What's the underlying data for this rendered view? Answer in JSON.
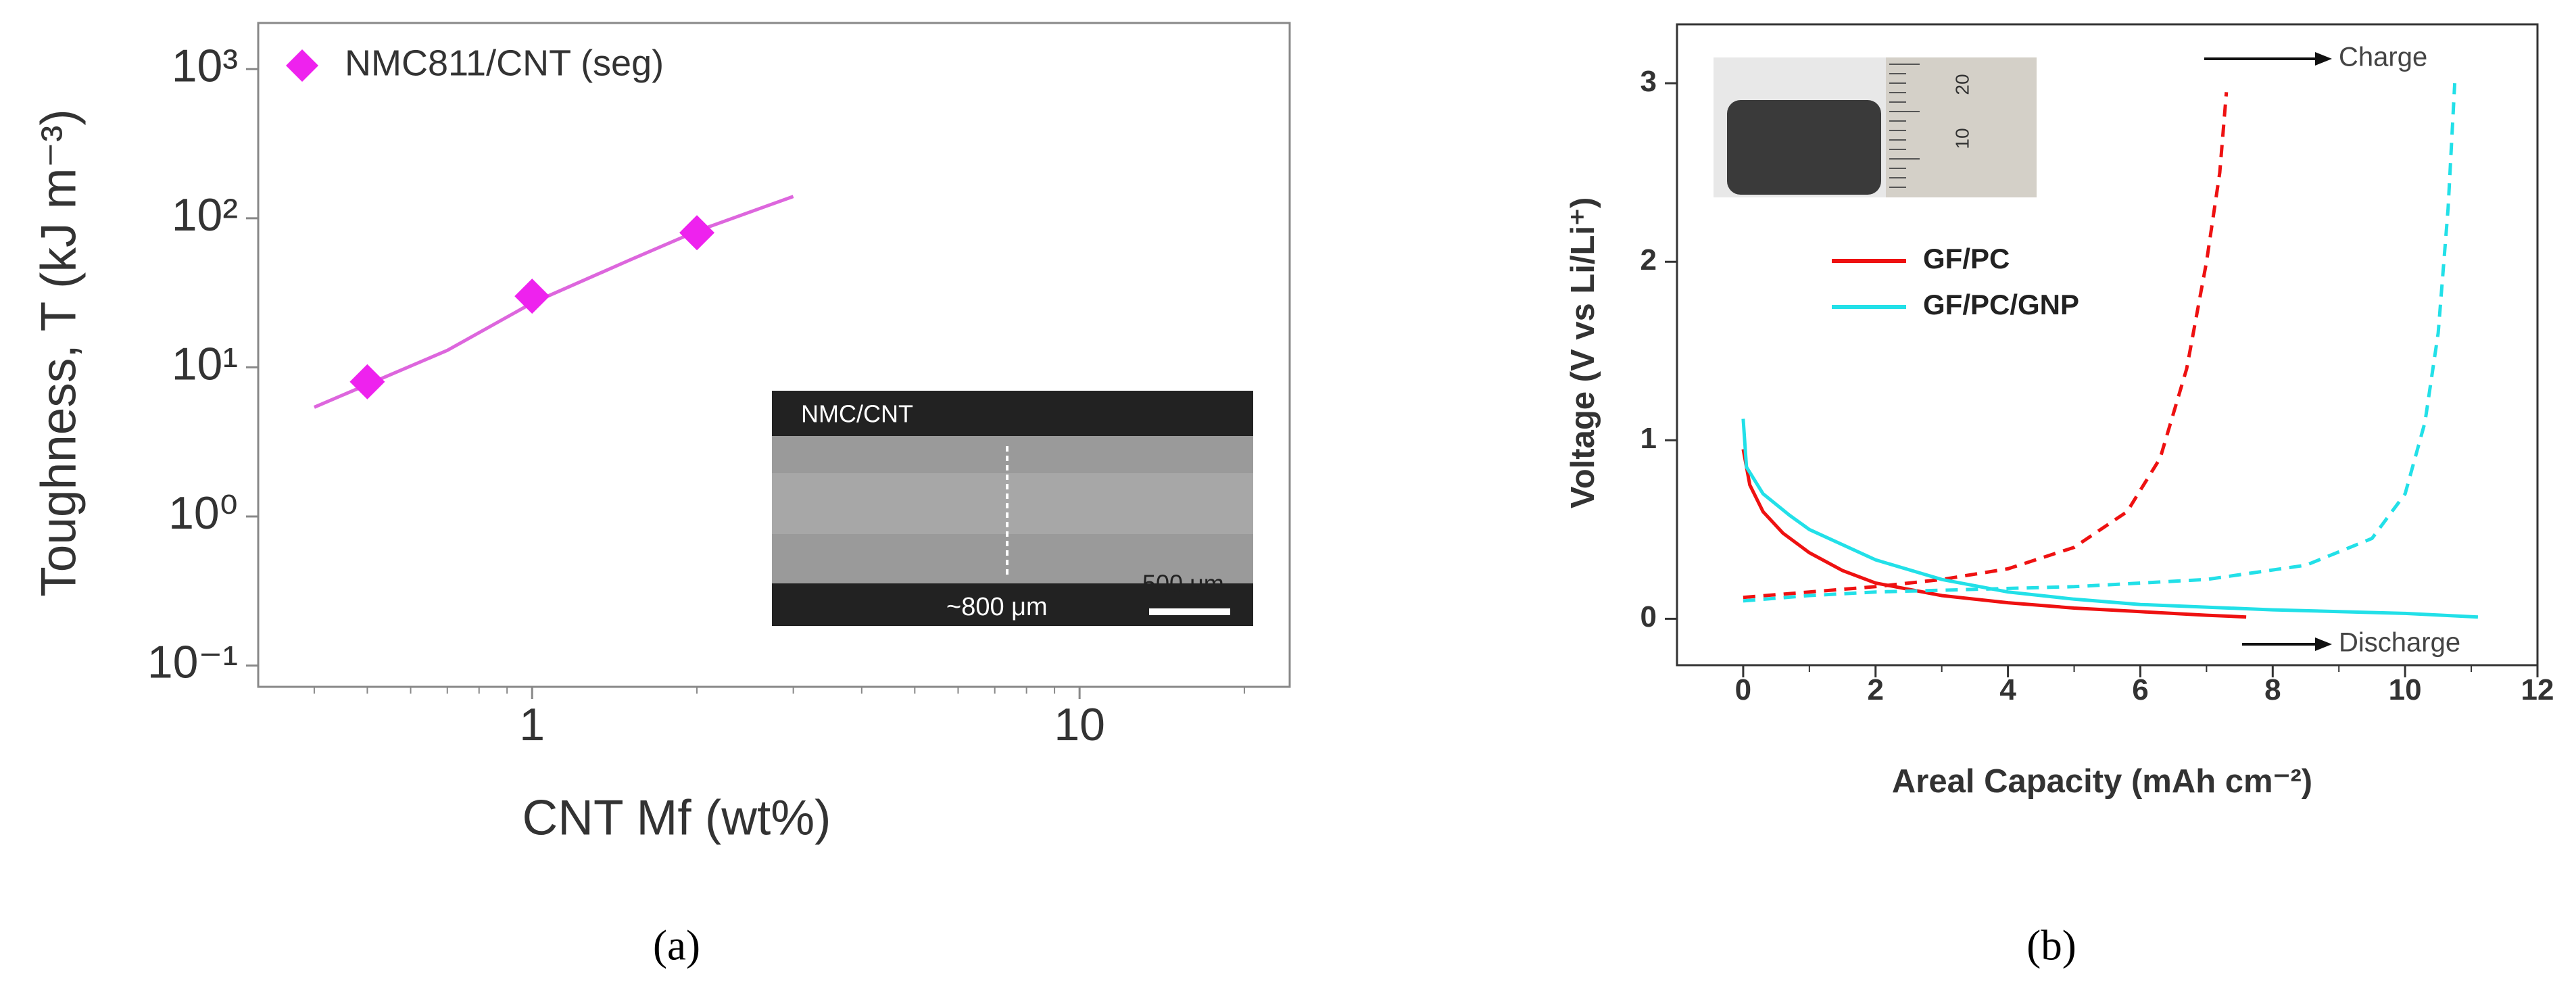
{
  "chart_data": [
    {
      "type": "scatter",
      "x_label": "CNT Mf (wt%)",
      "y_label": "Toughness, T (kJ m⁻³)",
      "xscale": "log",
      "yscale": "log",
      "xlim": [
        0.316,
        24.2
      ],
      "ylim": [
        0.072,
        2040
      ],
      "xticks": [
        1,
        10
      ],
      "yticks": [
        {
          "value": 0.1,
          "label": "10⁻¹"
        },
        {
          "value": 1,
          "label": "10⁰"
        },
        {
          "value": 10,
          "label": "10¹"
        },
        {
          "value": 100,
          "label": "10²"
        },
        {
          "value": 1000,
          "label": "10³"
        }
      ],
      "legend": "upper left",
      "series": [
        {
          "name": "NMC811/CNT (seg)",
          "color": "#ee22ee",
          "x": [
            0.5,
            1,
            2
          ],
          "values": [
            8,
            30,
            80
          ]
        }
      ],
      "fit": {
        "color": "#dd66dd",
        "x": [
          0.4,
          0.7,
          1,
          1.5,
          2,
          3
        ],
        "values": [
          5.4,
          13,
          27,
          52,
          82,
          140
        ]
      },
      "inset_labels": [
        "NMC/CNT",
        "~800 μm",
        "500 μm"
      ],
      "caption": "(a)"
    },
    {
      "type": "line",
      "x_label": "Areal Capacity (mAh cm⁻²)",
      "y_label": "Voltage (V vs Li/Li⁺)",
      "xlim": [
        -1,
        12
      ],
      "ylim": [
        -0.26,
        3.33
      ],
      "xticks": [
        0,
        2,
        4,
        6,
        8,
        10,
        12
      ],
      "yticks": [
        0,
        1,
        2,
        3
      ],
      "legend": "upper left",
      "series": [
        {
          "name": "GF/PC",
          "color": "#ee1111",
          "discharge": {
            "x": [
              0,
              0.1,
              0.3,
              0.6,
              1,
              1.5,
              2,
              3,
              4,
              5,
              6,
              7,
              7.6
            ],
            "values": [
              0.95,
              0.75,
              0.6,
              0.48,
              0.37,
              0.27,
              0.2,
              0.13,
              0.09,
              0.06,
              0.04,
              0.02,
              0.01
            ]
          },
          "charge": {
            "x": [
              0,
              1,
              2,
              3,
              4,
              5,
              5.8,
              6.3,
              6.7,
              7,
              7.2,
              7.3
            ],
            "values": [
              0.12,
              0.15,
              0.18,
              0.22,
              0.28,
              0.4,
              0.6,
              0.9,
              1.4,
              2.0,
              2.5,
              2.95
            ]
          }
        },
        {
          "name": "GF/PC/GNP",
          "color": "#22e0e8",
          "discharge": {
            "x": [
              0,
              0.05,
              0.3,
              0.7,
              1,
              2,
              3,
              4,
              5,
              6,
              8,
              10,
              11.1
            ],
            "values": [
              1.12,
              0.85,
              0.7,
              0.58,
              0.5,
              0.33,
              0.22,
              0.15,
              0.11,
              0.08,
              0.05,
              0.03,
              0.01
            ]
          },
          "charge": {
            "x": [
              0,
              1,
              2,
              3,
              5,
              7,
              8.5,
              9.5,
              10,
              10.3,
              10.5,
              10.65,
              10.75
            ],
            "values": [
              0.1,
              0.13,
              0.15,
              0.16,
              0.18,
              0.22,
              0.3,
              0.45,
              0.7,
              1.1,
              1.6,
              2.3,
              3.0
            ]
          }
        }
      ],
      "annotations": [
        "Charge",
        "Discharge"
      ],
      "inset_labels": [
        "20",
        "10"
      ],
      "caption": "(b)"
    }
  ]
}
